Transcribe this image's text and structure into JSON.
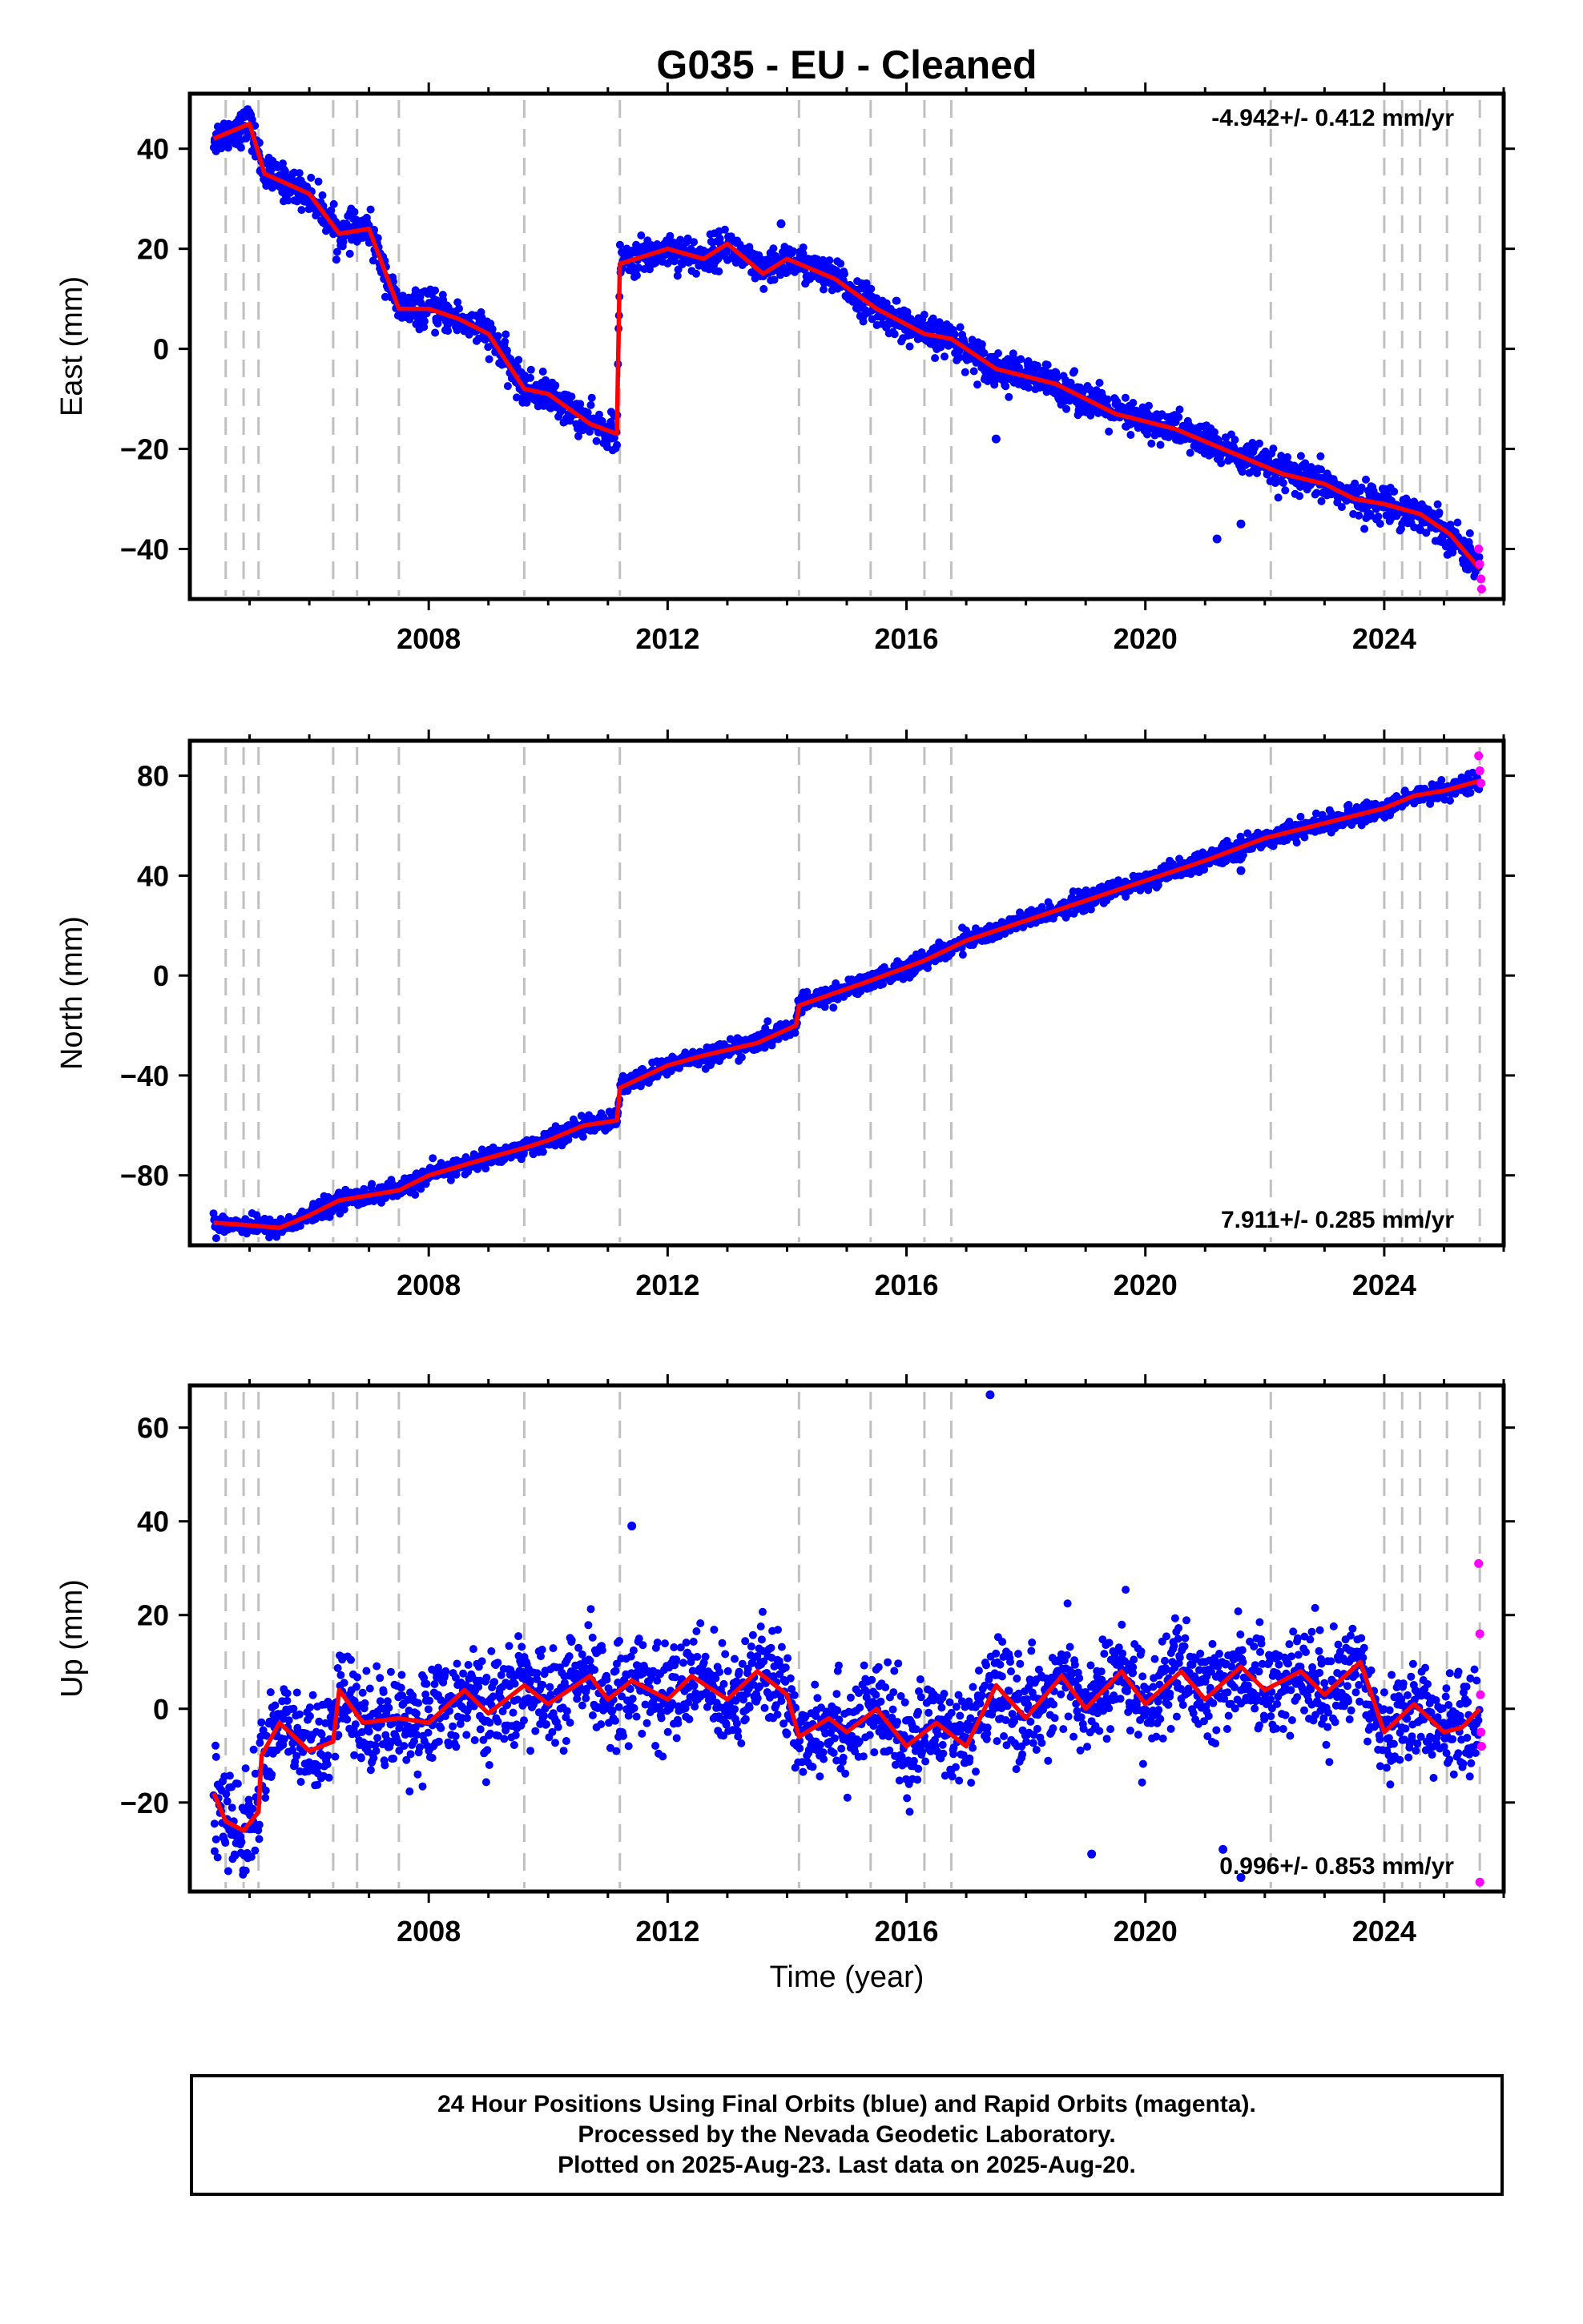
{
  "title": "G035  - EU - Cleaned",
  "xlabel": "Time (year)",
  "x_ticks": [
    "2008",
    "2012",
    "2016",
    "2020",
    "2024"
  ],
  "footer": {
    "line1": "24 Hour Positions Using Final Orbits (blue) and Rapid Orbits (magenta).",
    "line2": "Processed by the Nevada Geodetic Laboratory.",
    "line3": "Plotted on 2025-Aug-23. Last data on 2025-Aug-20."
  },
  "colors": {
    "final_orbits": "#0000ff",
    "rapid_orbits": "#ff00ff",
    "model": "#ff0000",
    "event_lines": "#c0c0c0"
  },
  "chart_data": [
    {
      "type": "scatter",
      "component": "East",
      "ylabel": "East (mm)",
      "xlim": [
        2004.0,
        2026.0
      ],
      "ylim": [
        -50,
        51
      ],
      "yticks": [
        -40,
        -20,
        0,
        20,
        40
      ],
      "rate_text": "-4.942+/- 0.412 mm/yr",
      "rate_position": "top-right",
      "event_lines": [
        2004.6,
        2004.9,
        2005.15,
        2006.4,
        2006.8,
        2007.5,
        2009.6,
        2011.2,
        2014.2,
        2015.4,
        2016.3,
        2016.75,
        2022.1,
        2024.0,
        2024.3,
        2024.6,
        2025.05,
        2025.6
      ],
      "model": {
        "x": [
          2004.4,
          2004.8,
          2005.0,
          2005.25,
          2006.0,
          2006.5,
          2007.0,
          2007.5,
          2008.0,
          2008.5,
          2009.0,
          2009.6,
          2010.0,
          2010.7,
          2011.15,
          2011.2,
          2012.0,
          2012.6,
          2013.0,
          2013.6,
          2014.0,
          2014.8,
          2015.5,
          2016.3,
          2016.75,
          2017.5,
          2018.5,
          2019.5,
          2020.5,
          2021.5,
          2022.3,
          2023.0,
          2023.5,
          2024.0,
          2024.6,
          2025.1,
          2025.6
        ],
        "values": [
          42,
          44,
          45,
          35,
          31,
          23,
          24,
          8,
          8,
          6,
          3,
          -8,
          -9,
          -15,
          -17,
          17,
          20,
          18,
          21,
          15,
          18,
          14,
          8,
          3,
          2,
          -4,
          -7,
          -13,
          -16,
          -21,
          -25,
          -27,
          -30,
          -31,
          -33,
          -37,
          -44
        ]
      },
      "rapid_orbits": {
        "x": [
          2025.58,
          2025.6,
          2025.62,
          2025.63
        ],
        "values": [
          -40,
          -43,
          -46,
          -48
        ]
      },
      "outliers": {
        "x": [
          2008.9,
          2013.9,
          2017.5,
          2021.2,
          2021.6
        ],
        "values": [
          5,
          25,
          -18,
          -38,
          -35
        ]
      }
    },
    {
      "type": "scatter",
      "component": "North",
      "ylabel": "North (mm)",
      "xlim": [
        2004.0,
        2026.0
      ],
      "ylim": [
        -108,
        94
      ],
      "yticks": [
        -80,
        -40,
        0,
        40,
        80
      ],
      "rate_text": "7.911+/- 0.285 mm/yr",
      "rate_position": "bottom-right",
      "event_lines": [
        2004.6,
        2004.9,
        2005.15,
        2006.4,
        2006.8,
        2007.5,
        2009.6,
        2011.2,
        2014.2,
        2015.4,
        2016.3,
        2016.75,
        2022.1,
        2024.0,
        2024.3,
        2024.6,
        2025.05,
        2025.6
      ],
      "model": {
        "x": [
          2004.4,
          2005.0,
          2005.5,
          2006.0,
          2006.5,
          2007.0,
          2007.5,
          2008.0,
          2009.0,
          2009.6,
          2010.0,
          2010.6,
          2011.15,
          2011.2,
          2012.0,
          2012.6,
          2013.5,
          2014.15,
          2014.2,
          2015.4,
          2016.3,
          2017.0,
          2018.0,
          2019.0,
          2020.0,
          2021.0,
          2022.0,
          2023.0,
          2024.0,
          2024.5,
          2025.0,
          2025.6
        ],
        "values": [
          -99,
          -100,
          -101,
          -96,
          -90,
          -88,
          -86,
          -80,
          -73,
          -69,
          -66,
          -60,
          -58,
          -45,
          -36,
          -32,
          -27,
          -20,
          -12,
          -2,
          6,
          14,
          22,
          30,
          38,
          46,
          55,
          61,
          67,
          72,
          74,
          78
        ]
      },
      "rapid_orbits": {
        "x": [
          2025.58,
          2025.6,
          2025.62
        ],
        "values": [
          88,
          82,
          77
        ]
      },
      "outliers": {
        "x": [
          2021.6
        ],
        "values": [
          42
        ]
      }
    },
    {
      "type": "scatter",
      "component": "Up",
      "ylabel": "Up (mm)",
      "xlim": [
        2004.0,
        2026.0
      ],
      "ylim": [
        -39,
        69
      ],
      "yticks": [
        -20,
        0,
        20,
        40,
        60
      ],
      "rate_text": "0.996+/- 0.853 mm/yr",
      "rate_position": "bottom-right",
      "event_lines": [
        2004.6,
        2004.9,
        2005.15,
        2006.4,
        2006.8,
        2007.5,
        2009.6,
        2011.2,
        2014.2,
        2015.4,
        2016.3,
        2016.75,
        2022.1,
        2024.0,
        2024.3,
        2024.6,
        2025.05,
        2025.6
      ],
      "model": {
        "x": [
          2004.4,
          2004.6,
          2004.9,
          2005.15,
          2005.2,
          2005.5,
          2006.0,
          2006.4,
          2006.5,
          2006.9,
          2007.5,
          2008.0,
          2008.6,
          2009.0,
          2009.6,
          2010.0,
          2010.7,
          2011.0,
          2011.4,
          2012.0,
          2012.4,
          2013.0,
          2013.5,
          2014.0,
          2014.2,
          2014.7,
          2015.0,
          2015.5,
          2016.0,
          2016.5,
          2017.0,
          2017.5,
          2018.0,
          2018.6,
          2019.0,
          2019.6,
          2020.0,
          2020.6,
          2021.0,
          2021.6,
          2022.0,
          2022.6,
          2023.0,
          2023.6,
          2024.0,
          2024.5,
          2025.0,
          2025.3,
          2025.6
        ],
        "values": [
          -18,
          -24,
          -26,
          -22,
          -10,
          -3,
          -9,
          -7,
          4,
          -3,
          -2,
          -3,
          4,
          -1,
          5,
          1,
          7,
          2,
          6,
          2,
          7,
          2,
          8,
          3,
          -6,
          -2,
          -5,
          0,
          -8,
          -3,
          -8,
          5,
          -2,
          7,
          0,
          8,
          1,
          8,
          2,
          9,
          4,
          8,
          3,
          10,
          -5,
          1,
          -5,
          -4,
          0
        ]
      },
      "rapid_orbits": {
        "x": [
          2025.58,
          2025.6,
          2025.61,
          2025.62,
          2025.63,
          2025.6
        ],
        "values": [
          31,
          16,
          3,
          -5,
          -8,
          -37
        ]
      },
      "outliers": {
        "x": [
          2017.4,
          2011.4,
          2021.3,
          2021.6,
          2019.1
        ],
        "values": [
          67,
          39,
          -30,
          -36,
          -31
        ]
      }
    }
  ]
}
